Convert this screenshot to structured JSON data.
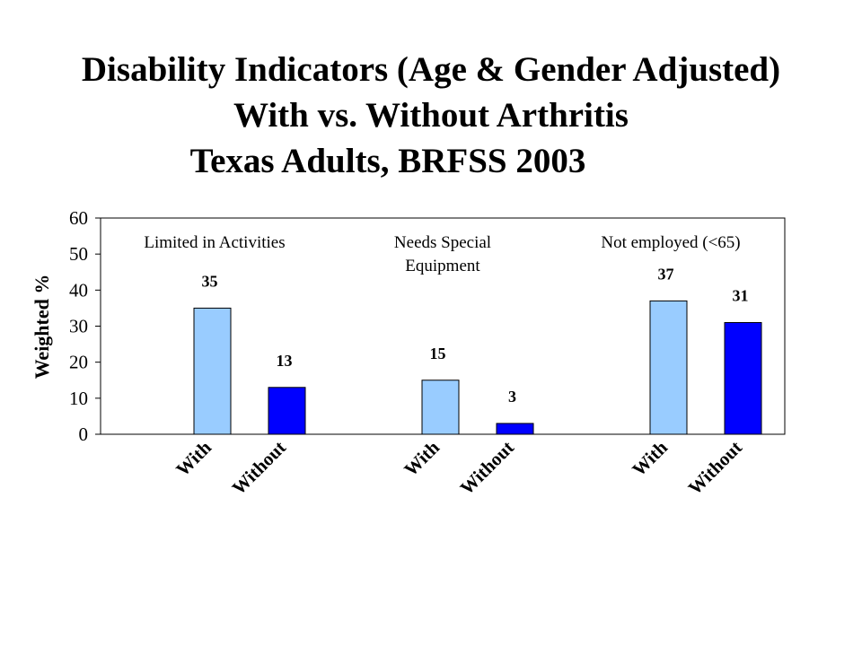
{
  "title": {
    "line1": "Disability Indicators (Age & Gender Adjusted)",
    "line2": "With vs. Without Arthritis",
    "line3": "Texas Adults, BRFSS 2003"
  },
  "chart_data": {
    "type": "bar",
    "ylabel": "Weighted %",
    "ylim": [
      0,
      60
    ],
    "yticks": [
      0,
      10,
      20,
      30,
      40,
      50,
      60
    ],
    "grid": false,
    "groups": [
      {
        "label_lines": [
          "Limited in Activities"
        ],
        "bars": [
          {
            "category": "With",
            "value": 35,
            "color": "#99ccff"
          },
          {
            "category": "Without",
            "value": 13,
            "color": "#0000ff"
          }
        ]
      },
      {
        "label_lines": [
          "Needs Special",
          "Equipment"
        ],
        "bars": [
          {
            "category": "With",
            "value": 15,
            "color": "#99ccff"
          },
          {
            "category": "Without",
            "value": 3,
            "color": "#0000ff"
          }
        ]
      },
      {
        "label_lines": [
          "Not employed (<65)"
        ],
        "bars": [
          {
            "category": "With",
            "value": 37,
            "color": "#99ccff"
          },
          {
            "category": "Without",
            "value": 31,
            "color": "#0000ff"
          }
        ]
      }
    ]
  }
}
